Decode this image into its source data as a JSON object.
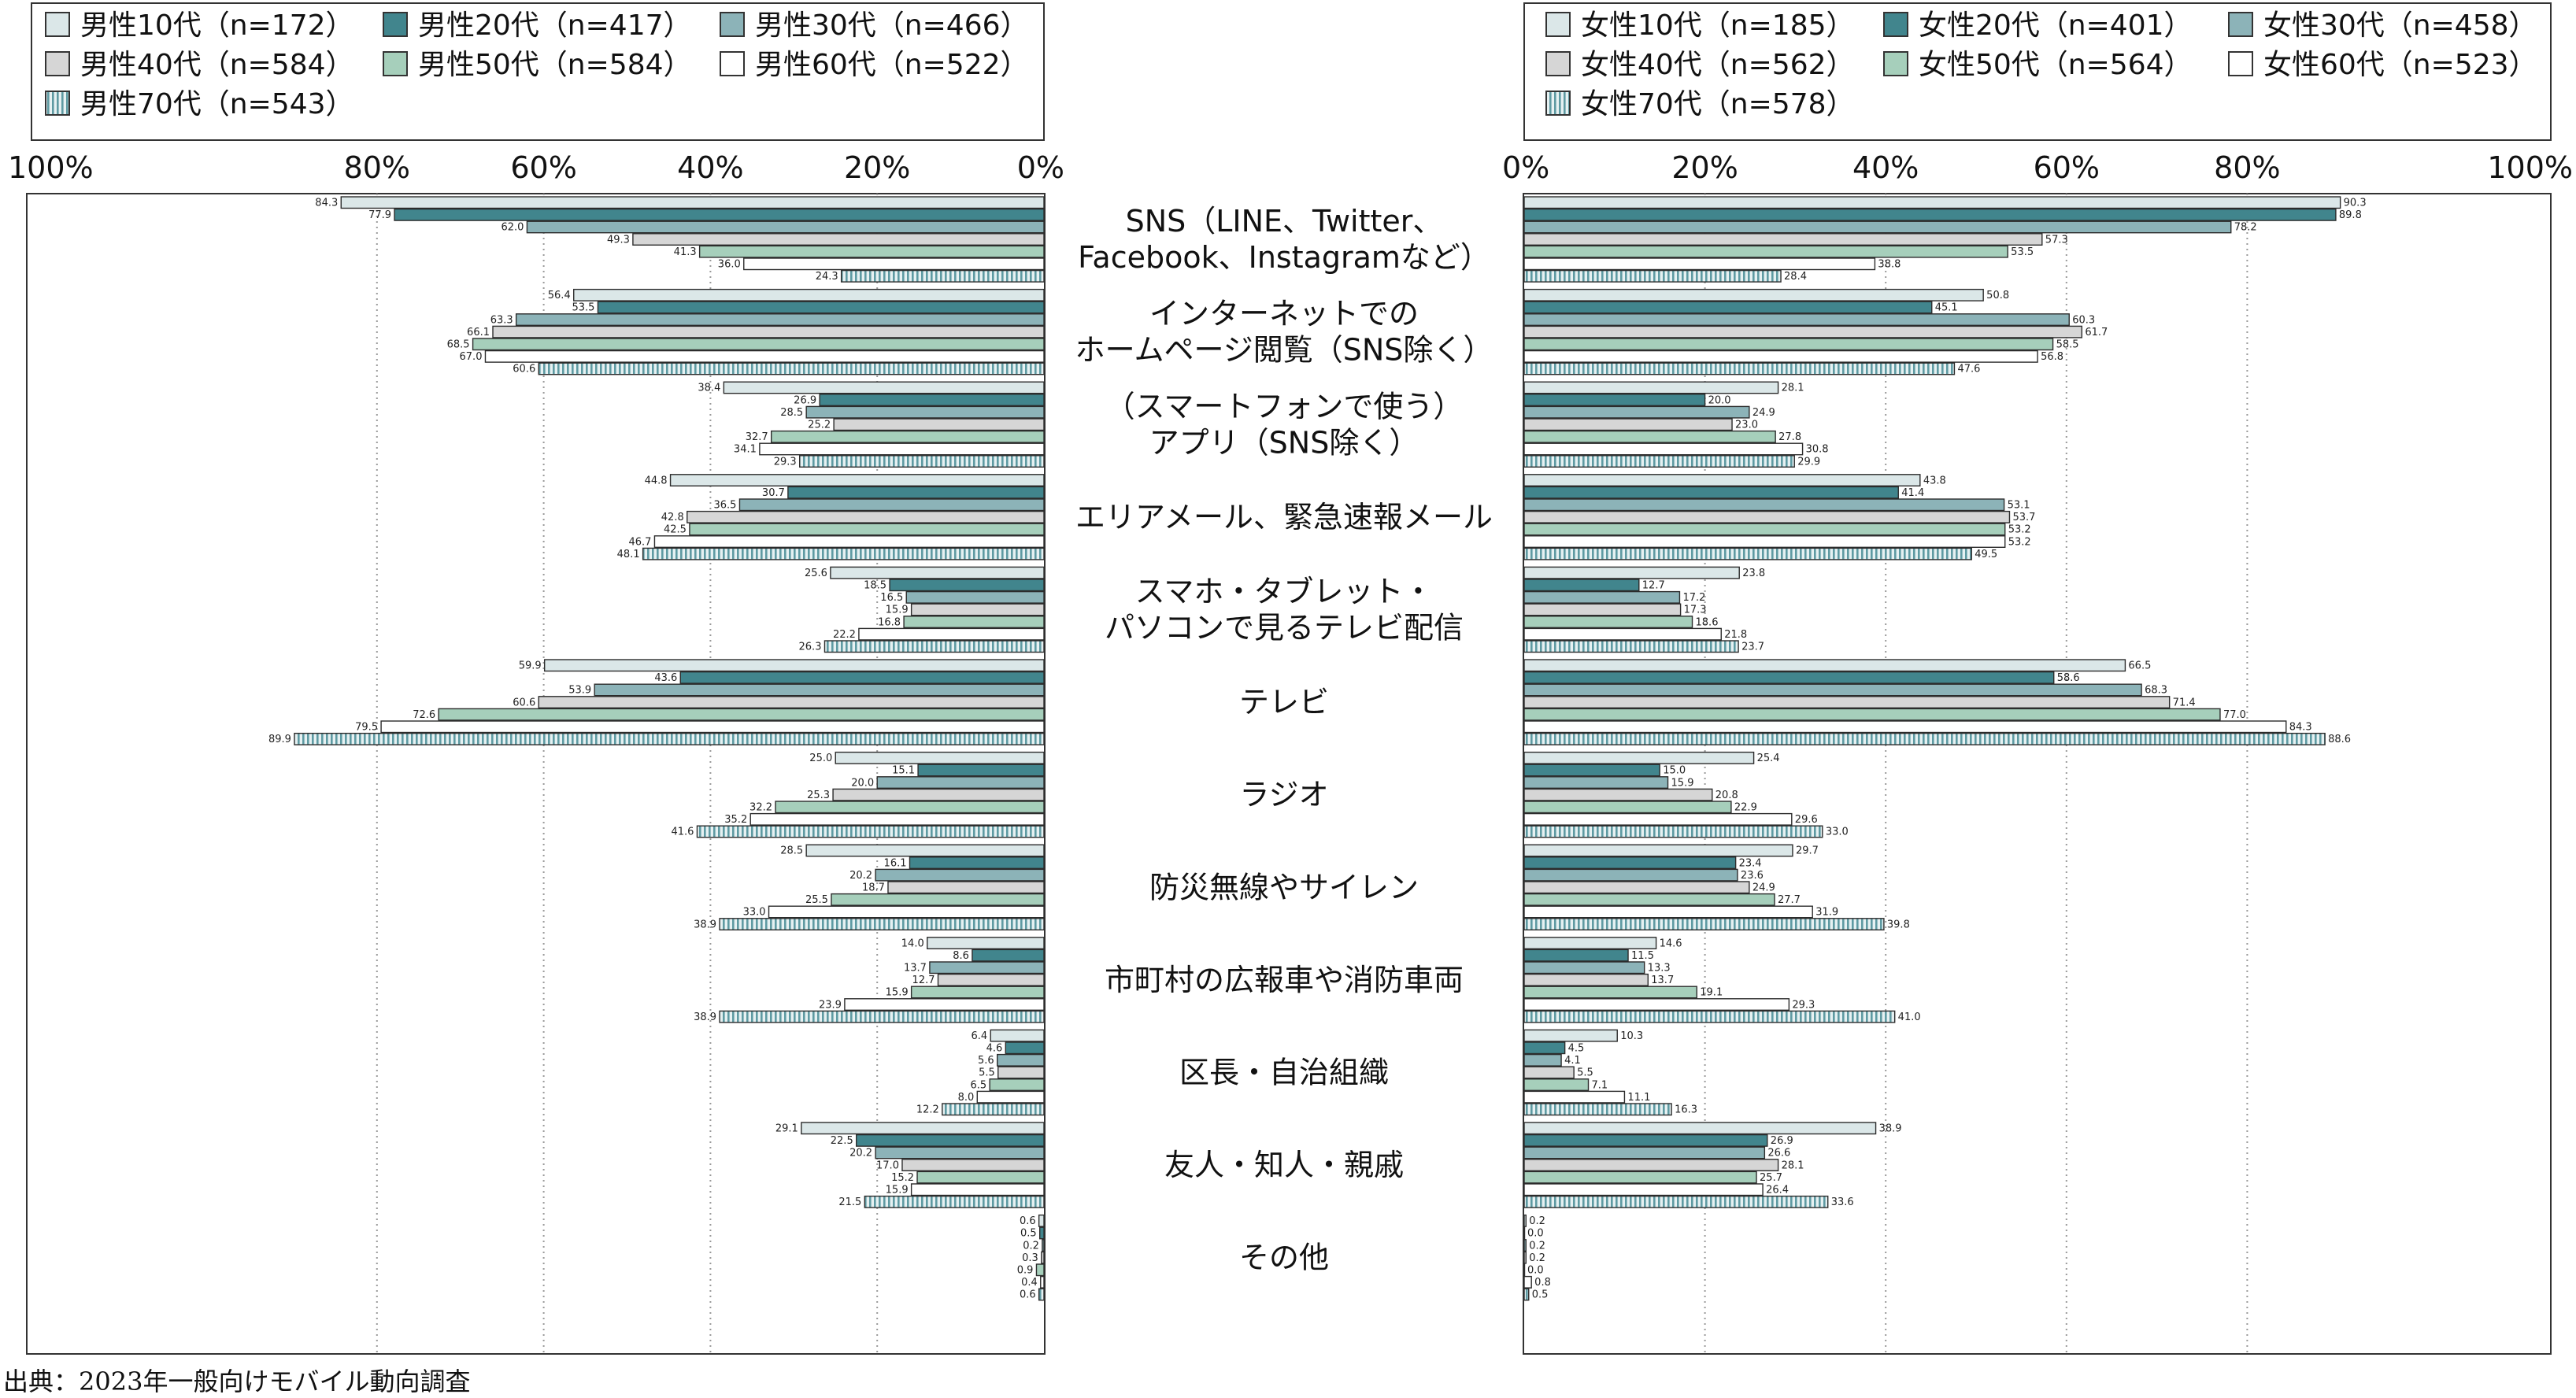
{
  "source": "出典：2023年一般向けモバイル動向調査",
  "colors": [
    "#dbe7e8",
    "#41858d",
    "#8cb3b8",
    "#d6d6d6",
    "#a6cfbb",
    "#ffffff",
    "#aacfd3"
  ],
  "chart_data": {
    "type": "bar",
    "orientation": "horizontal",
    "categories": [
      "SNS（LINE、Twitter、\nFacebook、Instagramなど）",
      "インターネットでの\nホームページ閲覧（SNS除く）",
      "（スマートフォンで使う）\nアプリ（SNS除く）",
      "エリアメール、緊急速報メール",
      "スマホ・タブレット・\nパソコンで見るテレビ配信",
      "テレビ",
      "ラジオ",
      "防災無線やサイレン",
      "市町村の広報車や消防車両",
      "区長・自治組織",
      "友人・知人・親戚",
      "その他"
    ],
    "panels": [
      {
        "side": "left",
        "ticks": [
          "100%",
          "80%",
          "60%",
          "40%",
          "20%",
          "0%"
        ],
        "xlim": [
          100,
          0
        ],
        "legend_placement": "top",
        "series": [
          {
            "name": "男性10代（n=172）",
            "values": [
              84.3,
              56.4,
              38.4,
              44.8,
              25.6,
              59.9,
              25.0,
              28.5,
              14.0,
              6.4,
              29.1,
              0.6
            ]
          },
          {
            "name": "男性20代（n=417）",
            "values": [
              77.9,
              53.5,
              26.9,
              30.7,
              18.5,
              43.6,
              15.1,
              16.1,
              8.6,
              4.6,
              22.5,
              0.5
            ]
          },
          {
            "name": "男性30代（n=466）",
            "values": [
              62.0,
              63.3,
              28.5,
              36.5,
              16.5,
              53.9,
              20.0,
              20.2,
              13.7,
              5.6,
              20.2,
              0.2
            ]
          },
          {
            "name": "男性40代（n=584）",
            "values": [
              49.3,
              66.1,
              25.2,
              42.8,
              15.9,
              60.6,
              25.3,
              18.7,
              12.7,
              5.5,
              17.0,
              0.3
            ]
          },
          {
            "name": "男性50代（n=584）",
            "values": [
              41.3,
              68.5,
              32.7,
              42.5,
              16.8,
              72.6,
              32.2,
              25.5,
              15.9,
              6.5,
              15.2,
              0.9
            ]
          },
          {
            "name": "男性60代（n=522）",
            "values": [
              36.0,
              67.0,
              34.1,
              46.7,
              22.2,
              79.5,
              35.2,
              33.0,
              23.9,
              8.0,
              15.9,
              0.4
            ]
          },
          {
            "name": "男性70代（n=543）",
            "values": [
              24.3,
              60.6,
              29.3,
              48.1,
              26.3,
              89.9,
              41.6,
              38.9,
              38.9,
              12.2,
              21.5,
              0.6
            ]
          }
        ]
      },
      {
        "side": "right",
        "ticks": [
          "0%",
          "20%",
          "40%",
          "60%",
          "80%",
          "100%"
        ],
        "xlim": [
          0,
          100
        ],
        "legend_placement": "top",
        "series": [
          {
            "name": "女性10代（n=185）",
            "values": [
              90.3,
              50.8,
              28.1,
              43.8,
              23.8,
              66.5,
              25.4,
              29.7,
              14.6,
              10.3,
              38.9,
              0.2
            ]
          },
          {
            "name": "女性20代（n=401）",
            "values": [
              89.8,
              45.1,
              20.0,
              41.4,
              12.7,
              58.6,
              15.0,
              23.4,
              11.5,
              4.5,
              26.9,
              0.0
            ]
          },
          {
            "name": "女性30代（n=458）",
            "values": [
              78.2,
              60.3,
              24.9,
              53.1,
              17.2,
              68.3,
              15.9,
              23.6,
              13.3,
              4.1,
              26.6,
              0.2
            ]
          },
          {
            "name": "女性40代（n=562）",
            "values": [
              57.3,
              61.7,
              23.0,
              53.7,
              17.3,
              71.4,
              20.8,
              24.9,
              13.7,
              5.5,
              28.1,
              0.2
            ]
          },
          {
            "name": "女性50代（n=564）",
            "values": [
              53.5,
              58.5,
              27.8,
              53.2,
              18.6,
              77.0,
              22.9,
              27.7,
              19.1,
              7.1,
              25.7,
              0.0
            ]
          },
          {
            "name": "女性60代（n=523）",
            "values": [
              38.8,
              56.8,
              30.8,
              53.2,
              21.8,
              84.3,
              29.6,
              31.9,
              29.3,
              11.1,
              26.4,
              0.8
            ]
          },
          {
            "name": "女性70代（n=578）",
            "values": [
              28.4,
              47.6,
              29.9,
              49.5,
              23.7,
              88.6,
              33.0,
              39.8,
              41.0,
              16.3,
              33.6,
              0.5
            ]
          }
        ]
      }
    ]
  }
}
